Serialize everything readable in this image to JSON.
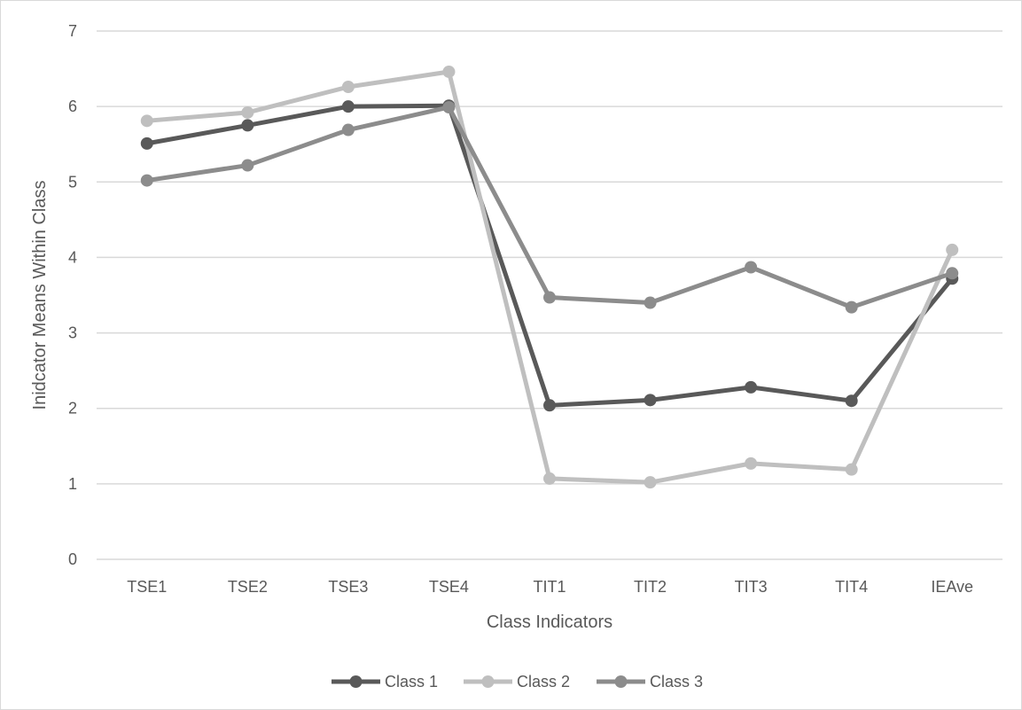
{
  "chart_data": {
    "type": "line",
    "title": "",
    "xlabel": "Class Indicators",
    "ylabel": "Inidcator Means Within Class",
    "categories": [
      "TSE1",
      "TSE2",
      "TSE3",
      "TSE4",
      "TIT1",
      "TIT2",
      "TIT3",
      "TIT4",
      "IEAve"
    ],
    "ylim": [
      0,
      7
    ],
    "yticks": [
      0,
      1,
      2,
      3,
      4,
      5,
      6,
      7
    ],
    "grid": true,
    "legend": "bottom",
    "series": [
      {
        "name": "Class 1",
        "color": "#595959",
        "values": [
          5.51,
          5.75,
          6.0,
          6.01,
          2.04,
          2.11,
          2.28,
          2.1,
          3.72
        ]
      },
      {
        "name": "Class 2",
        "color": "#bfbfbf",
        "values": [
          5.81,
          5.92,
          6.26,
          6.46,
          1.07,
          1.02,
          1.27,
          1.19,
          4.1
        ]
      },
      {
        "name": "Class 3",
        "color": "#8c8c8c",
        "values": [
          5.02,
          5.22,
          5.69,
          5.99,
          3.47,
          3.4,
          3.87,
          3.34,
          3.79
        ]
      }
    ]
  }
}
